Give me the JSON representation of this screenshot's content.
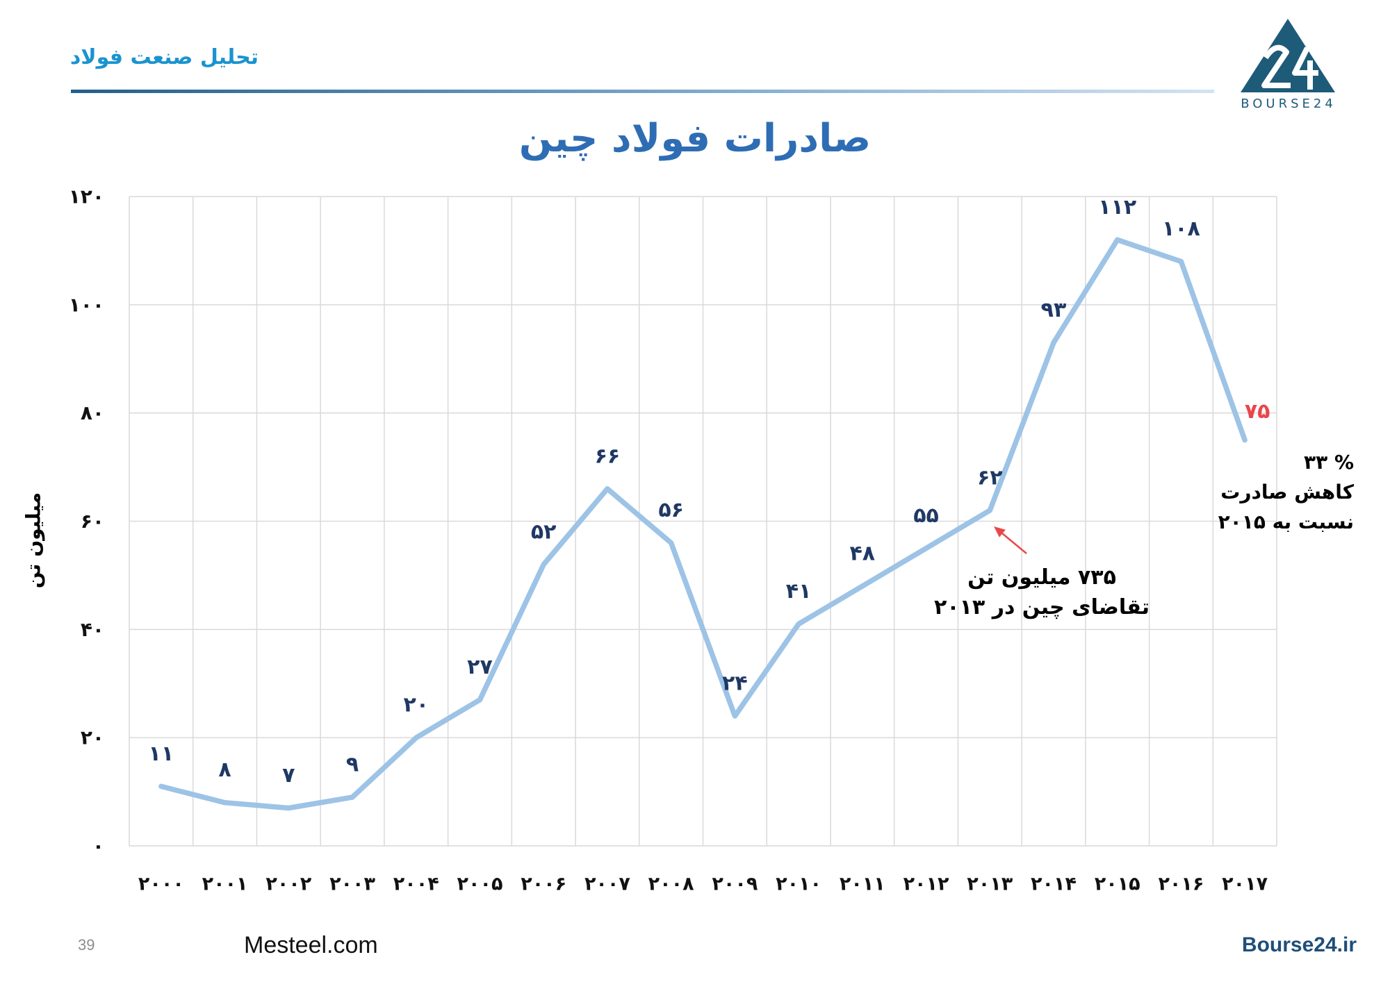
{
  "header": {
    "section_title": "تحلیل صنعت فولاد",
    "color": "#1a93cf"
  },
  "logo": {
    "text": "BOURSE24",
    "color": "#1d5b79"
  },
  "chart_data": {
    "type": "line",
    "title": "صادرات فولاد چین",
    "title_color": "#2e6db4",
    "xlabel": "",
    "ylabel": "میلیون تن",
    "categories": [
      "۲۰۰۰",
      "۲۰۰۱",
      "۲۰۰۲",
      "۲۰۰۳",
      "۲۰۰۴",
      "۲۰۰۵",
      "۲۰۰۶",
      "۲۰۰۷",
      "۲۰۰۸",
      "۲۰۰۹",
      "۲۰۱۰",
      "۲۰۱۱",
      "۲۰۱۲",
      "۲۰۱۳",
      "۲۰۱۴",
      "۲۰۱۵",
      "۲۰۱۶",
      "۲۰۱۷"
    ],
    "values": [
      11,
      8,
      7,
      9,
      20,
      27,
      52,
      66,
      56,
      24,
      41,
      48,
      55,
      62,
      93,
      112,
      108,
      75
    ],
    "value_labels": [
      "۱۱",
      "۸",
      "۷",
      "۹",
      "۲۰",
      "۲۷",
      "۵۲",
      "۶۶",
      "۵۶",
      "۲۴",
      "۴۱",
      "۴۸",
      "۵۵",
      "۶۲",
      "۹۳",
      "۱۱۲",
      "۱۰۸",
      "۷۵"
    ],
    "value_label_colors": [
      "#1f3864",
      "#1f3864",
      "#1f3864",
      "#1f3864",
      "#1f3864",
      "#1f3864",
      "#1f3864",
      "#1f3864",
      "#1f3864",
      "#1f3864",
      "#1f3864",
      "#1f3864",
      "#1f3864",
      "#1f3864",
      "#1f3864",
      "#1f3864",
      "#1f3864",
      "#e8484a"
    ],
    "ylim": [
      0,
      120
    ],
    "yticks": [
      0,
      20,
      40,
      60,
      80,
      100,
      120
    ],
    "ytick_labels": [
      "۰",
      "۲۰",
      "۴۰",
      "۶۰",
      "۸۰",
      "۱۰۰",
      "۱۲۰"
    ],
    "grid": true,
    "line_color": "#9dc3e6",
    "annotations": {
      "demand": {
        "lines": [
          "۷۳۵ میلیون تن",
          "تقاضای چین در ۲۰۱۳"
        ],
        "arrow_color": "#e8484a"
      },
      "decline": {
        "lines": [
          "۳۳ %",
          "کاهش صادرت",
          "نسبت به ۲۰۱۵"
        ]
      }
    }
  },
  "footer": {
    "page_number": "39",
    "left_site": "Mesteel.com",
    "right_site": "Bourse24.ir",
    "right_site_color": "#1f4e79"
  }
}
